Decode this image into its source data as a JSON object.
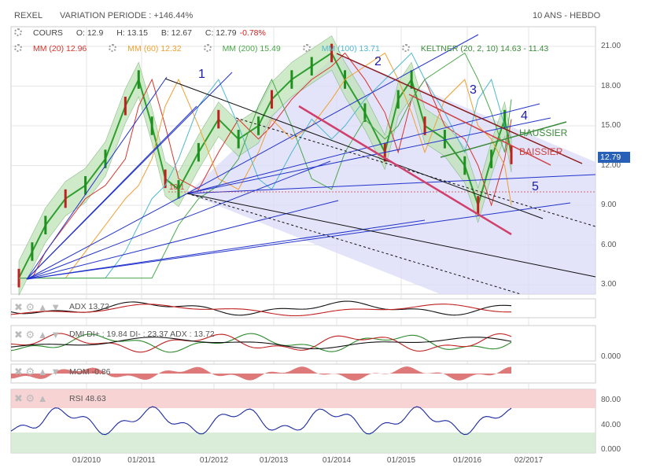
{
  "header": {
    "title": "REXEL",
    "variation": "VARIATION PERIODE : +146.44%",
    "period": "10 ANS - HEBDO"
  },
  "ohlc": {
    "name": "COURS",
    "o": "O: 12.9",
    "h": "H: 13.15",
    "b": "B: 12.67",
    "c": "C: 12.79",
    "chg": "-0.78%"
  },
  "indicators": [
    {
      "label": "MM (20)",
      "value": "12.96",
      "color": "#d9342b"
    },
    {
      "label": "MM (60)",
      "value": "12.32",
      "color": "#f0a030"
    },
    {
      "label": "MM (200)",
      "value": "15.49",
      "color": "#4aa84a"
    },
    {
      "label": "MM (100)",
      "value": "13.71",
      "color": "#4fb8d0"
    },
    {
      "label": "KELTNER (20, 2, 10)",
      "value": "14.63 - 11.43",
      "color": "#3a8a3a"
    }
  ],
  "annotations": {
    "n1": "1",
    "n2": "2",
    "n3": "3",
    "n4": "4",
    "n5": "5",
    "haussier": "HAUSSIER",
    "baissier": "BAISSIER",
    "low": "10.1"
  },
  "last_price": {
    "value": "12.79",
    "color": "#2860b8"
  },
  "panels": [
    {
      "name": "adx",
      "label": "ADX",
      "value": "13.72",
      "tag": "13.72",
      "tag_color": "#111111",
      "ticks": []
    },
    {
      "name": "dmi",
      "label": "DMI DI+ : 19.84 DI- : 23.37 ADX : 13.72",
      "tag": "19.84",
      "tag_color": "#2a8a2a",
      "ticks": [
        "0.000"
      ]
    },
    {
      "name": "mom",
      "label": "MOM",
      "value": "-0.86",
      "tag": "-0.860",
      "tag_color": "#d02020",
      "ticks": []
    },
    {
      "name": "rsi",
      "label": "RSI",
      "value": "48.63",
      "tag": "48.63",
      "tag_color": "#1a2aa0",
      "ticks": [
        "80.00",
        "40.00",
        "0.000"
      ]
    }
  ],
  "chart_data": {
    "type": "line",
    "title": "REXEL",
    "y_ticks": [
      "21.00",
      "18.00",
      "15.00",
      "12.00",
      "9.00",
      "6.00",
      "3.00"
    ],
    "ylim": [
      2,
      22
    ],
    "x_ticks": [
      "01/2010",
      "01/2011",
      "01/2012",
      "01/2013",
      "01/2014",
      "01/2015",
      "01/2016",
      "02/2017"
    ],
    "x": [
      2009.3,
      2009.5,
      2009.7,
      2010.0,
      2010.3,
      2010.6,
      2010.9,
      2011.1,
      2011.3,
      2011.5,
      2011.7,
      2012.0,
      2012.3,
      2012.6,
      2012.9,
      2013.1,
      2013.4,
      2013.7,
      2014.0,
      2014.2,
      2014.5,
      2014.8,
      2015.0,
      2015.2,
      2015.4,
      2015.7,
      2016.0,
      2016.2,
      2016.4,
      2016.6,
      2016.7
    ],
    "series": [
      {
        "name": "COURS",
        "values": [
          3.5,
          5.5,
          7.5,
          9.5,
          10.5,
          12.5,
          16.5,
          18.5,
          15.0,
          11.0,
          10.2,
          13.0,
          15.5,
          14.0,
          15.0,
          17.0,
          18.5,
          19.5,
          20.5,
          18.5,
          16.0,
          13.0,
          17.0,
          18.5,
          15.0,
          14.0,
          12.0,
          9.0,
          12.5,
          15.5,
          12.8
        ]
      }
    ],
    "grid": true,
    "legend": "top-left"
  }
}
